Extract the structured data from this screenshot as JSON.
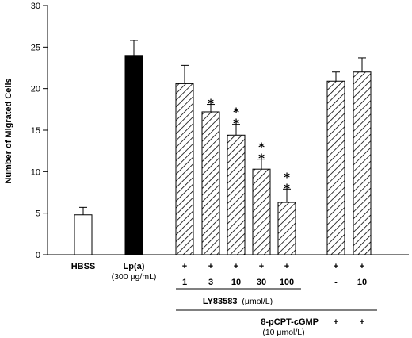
{
  "chart_data": {
    "type": "bar",
    "ylabel": "Number of Migrated Cells",
    "ylim": [
      0,
      30
    ],
    "yticks": [
      0,
      5,
      10,
      15,
      20,
      25,
      30
    ],
    "grid": false,
    "bars": [
      {
        "label": "HBSS",
        "value": 4.8,
        "error": 0.9,
        "fill": "open",
        "ly_sign": "",
        "ly_dose": "",
        "cgmp_sign": "",
        "cgmp_dose": "",
        "sig": ""
      },
      {
        "label": "Lp(a)",
        "sublabel": "(300 μg/mL)",
        "value": 24.0,
        "error": 1.8,
        "fill": "solid",
        "ly_sign": "",
        "ly_dose": "",
        "cgmp_sign": "",
        "cgmp_dose": "",
        "sig": ""
      },
      {
        "label": "",
        "value": 20.6,
        "error": 2.2,
        "fill": "hatch",
        "ly_sign": "+",
        "ly_dose": "1",
        "cgmp_sign": "",
        "cgmp_dose": "",
        "sig": ""
      },
      {
        "label": "",
        "value": 17.2,
        "error": 0.9,
        "fill": "hatch",
        "ly_sign": "+",
        "ly_dose": "3",
        "cgmp_sign": "",
        "cgmp_dose": "",
        "sig": "*"
      },
      {
        "label": "",
        "value": 14.4,
        "error": 1.3,
        "fill": "hatch",
        "ly_sign": "+",
        "ly_dose": "10",
        "cgmp_sign": "",
        "cgmp_dose": "",
        "sig": "**"
      },
      {
        "label": "",
        "value": 10.3,
        "error": 1.2,
        "fill": "hatch",
        "ly_sign": "+",
        "ly_dose": "30",
        "cgmp_sign": "",
        "cgmp_dose": "",
        "sig": "**"
      },
      {
        "label": "",
        "value": 6.3,
        "error": 1.6,
        "fill": "hatch",
        "ly_sign": "+",
        "ly_dose": "100",
        "cgmp_sign": "",
        "cgmp_dose": "",
        "sig": "**"
      },
      {
        "label": "",
        "value": 20.9,
        "error": 1.1,
        "fill": "hatch",
        "ly_sign": "+",
        "ly_dose": "-",
        "cgmp_sign": "+",
        "cgmp_dose": "",
        "sig": ""
      },
      {
        "label": "",
        "value": 22.0,
        "error": 1.7,
        "fill": "hatch",
        "ly_sign": "+",
        "ly_dose": "10",
        "cgmp_sign": "+",
        "cgmp_dose": "",
        "sig": ""
      }
    ],
    "ly_label": "LY83583",
    "ly_unit": "(μmol/L)",
    "cgmp_label": "8-pCPT-cGMP",
    "cgmp_unit": "(10 μmol/L)"
  }
}
